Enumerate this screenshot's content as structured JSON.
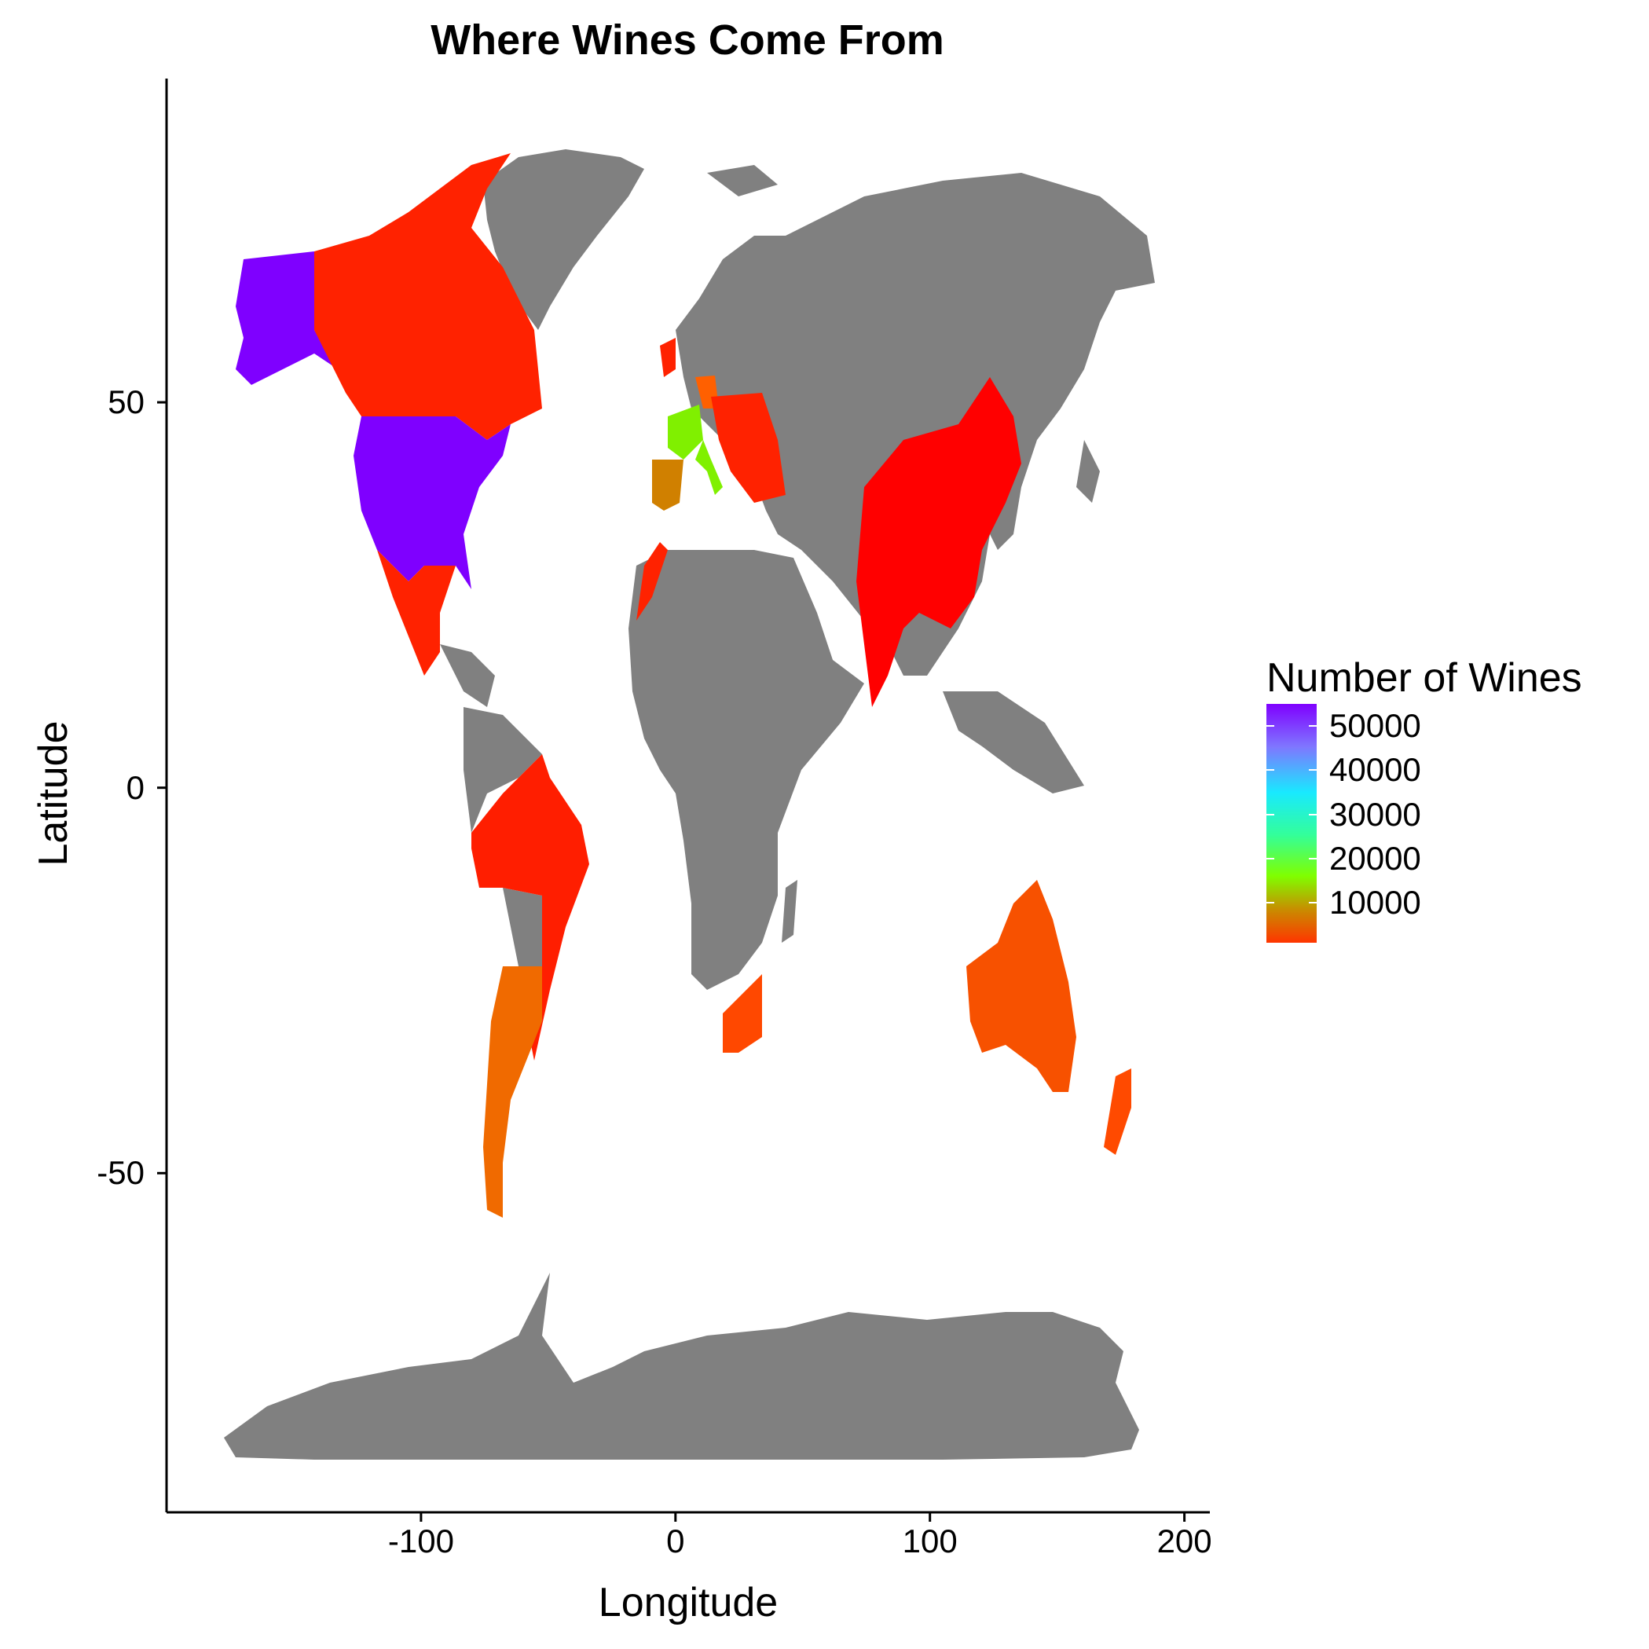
{
  "chart_data": {
    "type": "map",
    "title": "Where Wines Come From",
    "xlabel": "Longitude",
    "ylabel": "Latitude",
    "xlim": [
      -200,
      210
    ],
    "ylim": [
      -94,
      92
    ],
    "x_ticks": [
      -100,
      0,
      100,
      200
    ],
    "y_ticks": [
      50,
      0,
      -50
    ],
    "x_tick_labels": [
      "-100",
      "0",
      "100",
      "200"
    ],
    "y_tick_labels": [
      "50",
      "0",
      "-50"
    ],
    "grid": false,
    "legend": {
      "title": "Number of Wines",
      "position": "right",
      "breaks": [
        50000,
        40000,
        30000,
        20000,
        10000
      ],
      "labels": [
        "50000",
        "40000",
        "30000",
        "20000",
        "10000"
      ],
      "range": [
        1000,
        55000
      ]
    },
    "colors": {
      "no_data": "#808080",
      "low": "#ff2a00",
      "mid": "#80ff00",
      "high": "#7f00ff"
    }
  }
}
